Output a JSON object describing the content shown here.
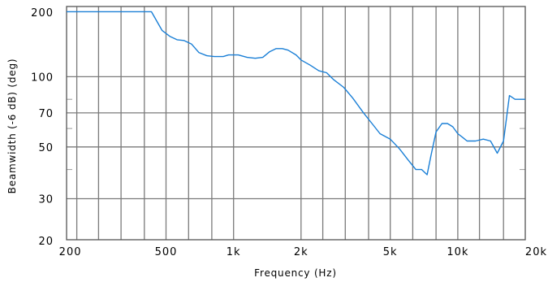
{
  "chart_data": {
    "type": "line",
    "xlabel": "Frequency (Hz)",
    "ylabel": "Beamwidth (-6 dB) (deg)",
    "x_scale": "log",
    "y_scale": "log",
    "xlim": [
      180,
      20000
    ],
    "ylim": [
      20,
      200
    ],
    "x_ticks": [
      {
        "value": 200,
        "label": "200"
      },
      {
        "value": 500,
        "label": "500"
      },
      {
        "value": 1000,
        "label": "1k"
      },
      {
        "value": 2000,
        "label": "2k"
      },
      {
        "value": 5000,
        "label": "5k"
      },
      {
        "value": 10000,
        "label": "10k"
      },
      {
        "value": 20000,
        "label": "20k"
      }
    ],
    "y_ticks": [
      {
        "value": 20,
        "label": "20"
      },
      {
        "value": 30,
        "label": "30"
      },
      {
        "value": 50,
        "label": "50"
      },
      {
        "value": 70,
        "label": "70"
      },
      {
        "value": 100,
        "label": "100"
      },
      {
        "value": 200,
        "label": "200"
      }
    ],
    "x_gridlines": [
      200,
      250,
      315,
      400,
      500,
      630,
      800,
      1000,
      2000,
      2500,
      3150,
      4000,
      5000,
      6300,
      8000,
      10000,
      12500,
      16000
    ],
    "y_gridlines_major": [
      30,
      50,
      70,
      100
    ],
    "y_gridlines_minor": [
      40,
      60,
      80
    ],
    "grid": true,
    "series": [
      {
        "color": "#1a7fd6",
        "x": [
          180,
          200,
          250,
          315,
          400,
          430,
          480,
          520,
          560,
          600,
          650,
          700,
          760,
          820,
          900,
          950,
          1050,
          1150,
          1250,
          1350,
          1450,
          1550,
          1650,
          1750,
          1900,
          2000,
          2200,
          2400,
          2600,
          2800,
          3100,
          3400,
          3800,
          4200,
          4500,
          5000,
          5500,
          6000,
          6500,
          6900,
          7300,
          7600,
          8000,
          8500,
          9000,
          9500,
          10000,
          10500,
          11000,
          12000,
          13000,
          14000,
          15000,
          16000,
          17000,
          18000,
          19000,
          20000
        ],
        "y": [
          190,
          190,
          190,
          190,
          190,
          190,
          158,
          149,
          144,
          143,
          138,
          127,
          123,
          122,
          122,
          124,
          124,
          121,
          120,
          121,
          128,
          132,
          132,
          130,
          124,
          118,
          112,
          106,
          104,
          97,
          90,
          81,
          70,
          62,
          57,
          54,
          49,
          44,
          40,
          40,
          38,
          46,
          58,
          63,
          63,
          61,
          57,
          55,
          53,
          53,
          54,
          53,
          47,
          53,
          83,
          80,
          80,
          80
        ]
      }
    ]
  }
}
